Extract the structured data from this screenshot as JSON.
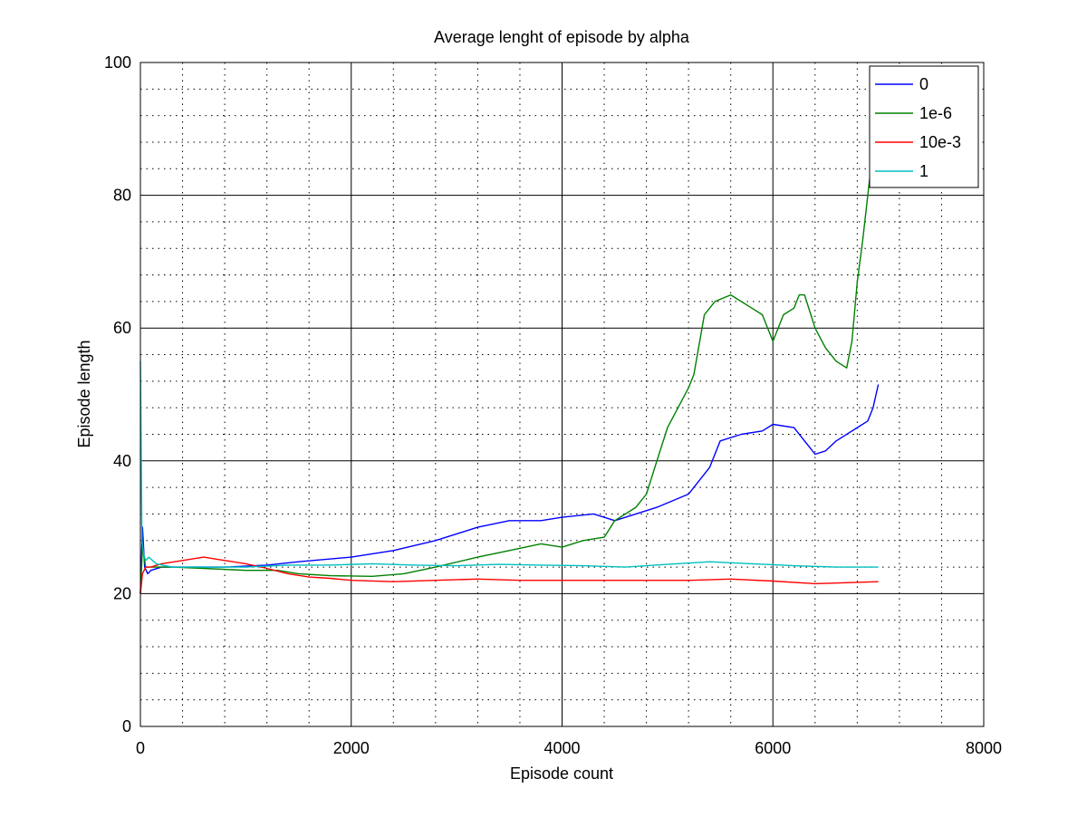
{
  "chart_data": {
    "type": "line",
    "title": "Average lenght of episode by alpha",
    "xlabel": "Episode count",
    "ylabel": "Episode length",
    "xlim": [
      0,
      8000
    ],
    "ylim": [
      0,
      100
    ],
    "xticks": [
      0,
      2000,
      4000,
      6000,
      8000
    ],
    "yticks": [
      0,
      20,
      40,
      60,
      80,
      100
    ],
    "xtick_labels": [
      "0",
      "2000",
      "4000",
      "6000",
      "8000"
    ],
    "ytick_labels": [
      "0",
      "20",
      "40",
      "60",
      "80",
      "100"
    ],
    "grid": true,
    "legend_position": "top-right",
    "series": [
      {
        "name": "0",
        "color": "#0000ff",
        "points": [
          [
            0,
            20
          ],
          [
            20,
            30
          ],
          [
            40,
            24
          ],
          [
            70,
            23
          ],
          [
            100,
            23.5
          ],
          [
            200,
            24
          ],
          [
            400,
            24
          ],
          [
            800,
            24
          ],
          [
            1200,
            24.3
          ],
          [
            1500,
            24.8
          ],
          [
            2000,
            25.5
          ],
          [
            2400,
            26.5
          ],
          [
            2800,
            28
          ],
          [
            3200,
            30
          ],
          [
            3500,
            31
          ],
          [
            3800,
            31
          ],
          [
            4000,
            31.5
          ],
          [
            4300,
            32
          ],
          [
            4500,
            31
          ],
          [
            4700,
            32
          ],
          [
            4900,
            33
          ],
          [
            5200,
            35
          ],
          [
            5400,
            39
          ],
          [
            5500,
            43
          ],
          [
            5700,
            44
          ],
          [
            5900,
            44.5
          ],
          [
            6000,
            45.5
          ],
          [
            6200,
            45
          ],
          [
            6300,
            43
          ],
          [
            6350,
            42
          ],
          [
            6400,
            41
          ],
          [
            6500,
            41.5
          ],
          [
            6600,
            43
          ],
          [
            6800,
            45
          ],
          [
            6900,
            46
          ],
          [
            6950,
            48
          ],
          [
            7000,
            51.5
          ]
        ]
      },
      {
        "name": "1e-6",
        "color": "#008000",
        "points": [
          [
            0,
            20
          ],
          [
            20,
            27
          ],
          [
            50,
            24
          ],
          [
            100,
            24
          ],
          [
            300,
            24
          ],
          [
            600,
            23.8
          ],
          [
            1000,
            23.5
          ],
          [
            1300,
            23.5
          ],
          [
            1500,
            23
          ],
          [
            1800,
            22.7
          ],
          [
            2200,
            22.6
          ],
          [
            2500,
            23
          ],
          [
            2800,
            24
          ],
          [
            3200,
            25.5
          ],
          [
            3500,
            26.5
          ],
          [
            3800,
            27.5
          ],
          [
            4000,
            27
          ],
          [
            4200,
            28
          ],
          [
            4400,
            28.5
          ],
          [
            4500,
            31
          ],
          [
            4700,
            33
          ],
          [
            4800,
            35
          ],
          [
            4900,
            40
          ],
          [
            5000,
            45
          ],
          [
            5100,
            48
          ],
          [
            5200,
            51
          ],
          [
            5250,
            53
          ],
          [
            5350,
            62
          ],
          [
            5450,
            64
          ],
          [
            5600,
            65
          ],
          [
            5700,
            64
          ],
          [
            5800,
            63
          ],
          [
            5900,
            62
          ],
          [
            6000,
            58
          ],
          [
            6100,
            62
          ],
          [
            6200,
            63
          ],
          [
            6250,
            65
          ],
          [
            6300,
            65
          ],
          [
            6400,
            60
          ],
          [
            6500,
            57
          ],
          [
            6600,
            55
          ],
          [
            6700,
            54
          ],
          [
            6750,
            58
          ],
          [
            6800,
            67
          ],
          [
            6850,
            73
          ],
          [
            6900,
            80
          ],
          [
            6950,
            87
          ],
          [
            7000,
            88
          ]
        ]
      },
      {
        "name": "10e-3",
        "color": "#ff0000",
        "points": [
          [
            0,
            20
          ],
          [
            20,
            23
          ],
          [
            50,
            24
          ],
          [
            100,
            24
          ],
          [
            200,
            24.5
          ],
          [
            400,
            25
          ],
          [
            600,
            25.5
          ],
          [
            800,
            25
          ],
          [
            1000,
            24.5
          ],
          [
            1200,
            23.8
          ],
          [
            1400,
            23
          ],
          [
            1600,
            22.5
          ],
          [
            1800,
            22.3
          ],
          [
            2000,
            22
          ],
          [
            2400,
            21.8
          ],
          [
            2800,
            22
          ],
          [
            3200,
            22.2
          ],
          [
            3600,
            22
          ],
          [
            4000,
            22
          ],
          [
            4400,
            22
          ],
          [
            4800,
            22
          ],
          [
            5200,
            22
          ],
          [
            5600,
            22.2
          ],
          [
            6000,
            21.9
          ],
          [
            6400,
            21.5
          ],
          [
            6800,
            21.7
          ],
          [
            7000,
            21.8
          ]
        ]
      },
      {
        "name": "1",
        "color": "#00bfbf",
        "points": [
          [
            0,
            55
          ],
          [
            15,
            28
          ],
          [
            30,
            26
          ],
          [
            50,
            25
          ],
          [
            80,
            25.5
          ],
          [
            150,
            24.5
          ],
          [
            300,
            24
          ],
          [
            600,
            24
          ],
          [
            1000,
            24
          ],
          [
            1400,
            24.3
          ],
          [
            1800,
            24.3
          ],
          [
            2200,
            24.5
          ],
          [
            2600,
            24.3
          ],
          [
            3000,
            24.2
          ],
          [
            3400,
            24.4
          ],
          [
            3800,
            24.3
          ],
          [
            4200,
            24.2
          ],
          [
            4600,
            24
          ],
          [
            5000,
            24.4
          ],
          [
            5400,
            24.8
          ],
          [
            5800,
            24.5
          ],
          [
            6200,
            24.2
          ],
          [
            6600,
            24
          ],
          [
            7000,
            24
          ]
        ]
      }
    ]
  }
}
